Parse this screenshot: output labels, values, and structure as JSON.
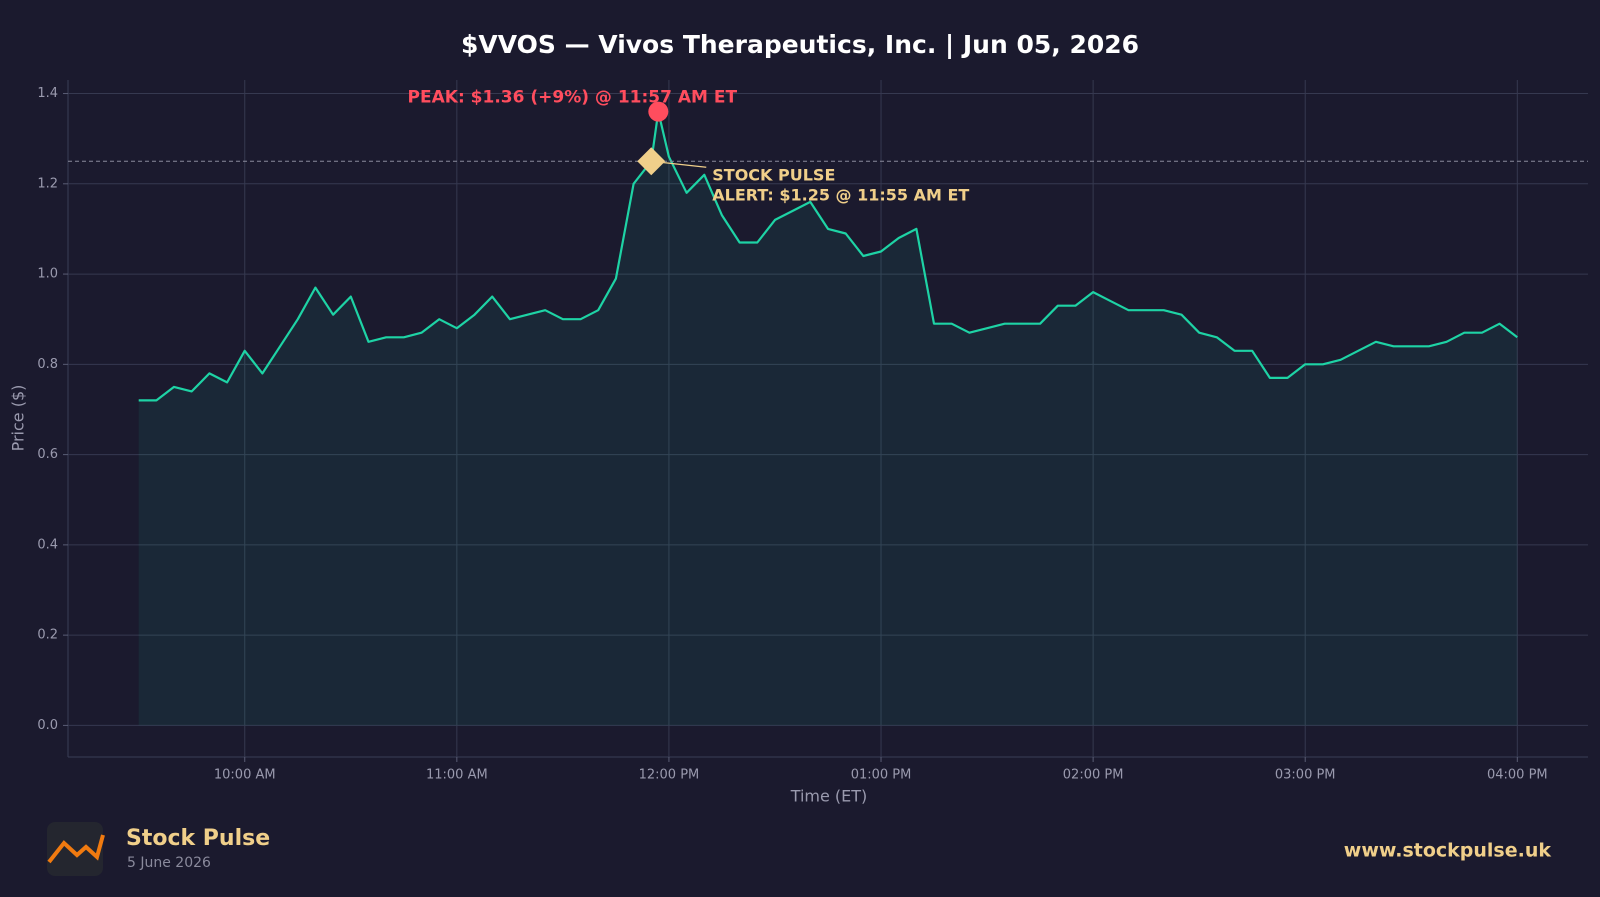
{
  "chart_data": {
    "type": "line",
    "title": "$VVOS — Vivos Therapeutics, Inc.  |  Jun 05, 2026",
    "x_label": "Time (ET)",
    "y_label": "Price ($)",
    "color": "#1ed3a5",
    "grid": true,
    "x": [
      "09:30",
      "09:35",
      "09:40",
      "09:45",
      "09:50",
      "09:55",
      "10:00",
      "10:05",
      "10:10",
      "10:15",
      "10:20",
      "10:25",
      "10:30",
      "10:35",
      "10:40",
      "10:45",
      "10:50",
      "10:55",
      "11:00",
      "11:05",
      "11:10",
      "11:15",
      "11:20",
      "11:25",
      "11:30",
      "11:35",
      "11:40",
      "11:45",
      "11:50",
      "11:55",
      "11:57",
      "12:00",
      "12:05",
      "12:10",
      "12:15",
      "12:20",
      "12:25",
      "12:30",
      "12:35",
      "12:40",
      "12:45",
      "12:50",
      "12:55",
      "13:00",
      "13:05",
      "13:10",
      "13:15",
      "13:20",
      "13:25",
      "13:30",
      "13:35",
      "13:40",
      "13:45",
      "13:50",
      "13:55",
      "14:00",
      "14:05",
      "14:10",
      "14:15",
      "14:20",
      "14:25",
      "14:30",
      "14:35",
      "14:40",
      "14:45",
      "14:50",
      "14:55",
      "15:00",
      "15:05",
      "15:10",
      "15:15",
      "15:20",
      "15:25",
      "15:30",
      "15:35",
      "15:40",
      "15:45",
      "15:50",
      "15:55",
      "16:00"
    ],
    "values": [
      0.72,
      0.72,
      0.75,
      0.74,
      0.78,
      0.76,
      0.83,
      0.78,
      0.84,
      0.9,
      0.97,
      0.91,
      0.95,
      0.85,
      0.86,
      0.86,
      0.87,
      0.9,
      0.88,
      0.91,
      0.95,
      0.9,
      0.91,
      0.92,
      0.9,
      0.9,
      0.92,
      0.99,
      1.2,
      1.25,
      1.36,
      1.26,
      1.18,
      1.22,
      1.13,
      1.07,
      1.07,
      1.12,
      1.14,
      1.16,
      1.1,
      1.09,
      1.04,
      1.05,
      1.08,
      1.1,
      0.89,
      0.89,
      0.87,
      0.88,
      0.89,
      0.89,
      0.89,
      0.93,
      0.93,
      0.96,
      0.94,
      0.92,
      0.92,
      0.92,
      0.91,
      0.87,
      0.86,
      0.83,
      0.83,
      0.77,
      0.77,
      0.8,
      0.8,
      0.81,
      0.83,
      0.85,
      0.84,
      0.84,
      0.84,
      0.85,
      0.87,
      0.87,
      0.89,
      0.86
    ],
    "xlim": [
      "09:10",
      "16:20"
    ],
    "xticks": [
      {
        "value": "10:00",
        "label": "10:00 AM"
      },
      {
        "value": "11:00",
        "label": "11:00 AM"
      },
      {
        "value": "12:00",
        "label": "12:00 PM"
      },
      {
        "value": "13:00",
        "label": "01:00 PM"
      },
      {
        "value": "14:00",
        "label": "02:00 PM"
      },
      {
        "value": "15:00",
        "label": "03:00 PM"
      },
      {
        "value": "16:00",
        "label": "04:00 PM"
      }
    ],
    "ylim": [
      -0.07,
      1.43
    ],
    "yticks": [
      {
        "value": 0,
        "label": "0.0"
      },
      0.2,
      0.4,
      0.6,
      0.8,
      {
        "value": 1,
        "label": "1.0"
      },
      1.2,
      1.4
    ],
    "peak": {
      "x": "11:57",
      "y": 1.36,
      "label": "PEAK: $1.36 (+9%) @ 11:57 AM ET",
      "color": "#ff4d5e"
    },
    "alert": {
      "x": "11:55",
      "y": 1.25,
      "label_lines": [
        "STOCK PULSE",
        "ALERT: $1.25 @ 11:55 AM ET"
      ],
      "color": "#f0cf8a"
    }
  },
  "footer": {
    "brand": "Stock Pulse",
    "date": "5 June 2026",
    "url": "www.stockpulse.uk"
  }
}
